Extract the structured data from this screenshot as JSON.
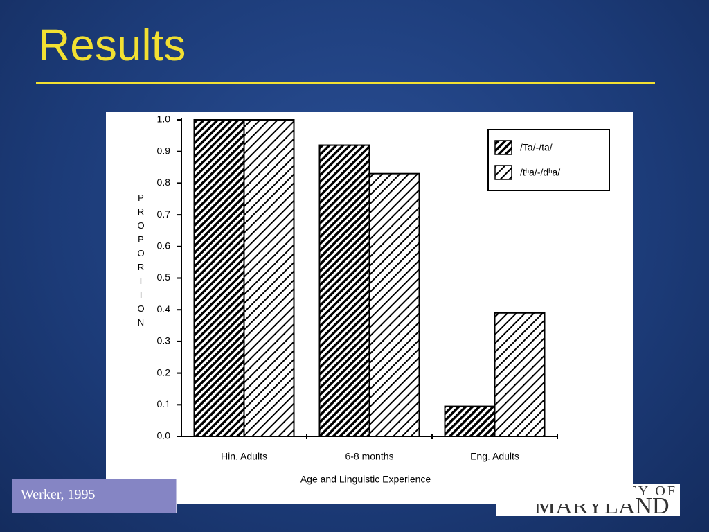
{
  "slide": {
    "title": "Results",
    "citation": "Werker, 1995",
    "logo": {
      "top": "TY OF",
      "bottom": "MARYLAND"
    }
  },
  "chart_data": {
    "type": "bar",
    "xlabel": "Age and Linguistic Experience",
    "ylabel": "PROPORTION",
    "categories": [
      "Hin. Adults",
      "6-8 months",
      "Eng. Adults"
    ],
    "series": [
      {
        "name": "/Ta/-/ta/",
        "color": "#000000",
        "values": [
          1.0,
          0.92,
          0.095
        ]
      },
      {
        "name": "/tʰa/-/dʰa/",
        "color": "#000000",
        "values": [
          1.0,
          0.83,
          0.39
        ]
      }
    ],
    "ylim": [
      0,
      1
    ],
    "yticks": [
      {
        "value": 0,
        "label": "0.0"
      },
      0.1,
      0.2,
      0.3,
      0.4,
      0.5,
      0.6,
      0.7,
      0.8,
      0.9,
      {
        "value": 1,
        "label": "1.0"
      }
    ],
    "legend": "upper right"
  }
}
